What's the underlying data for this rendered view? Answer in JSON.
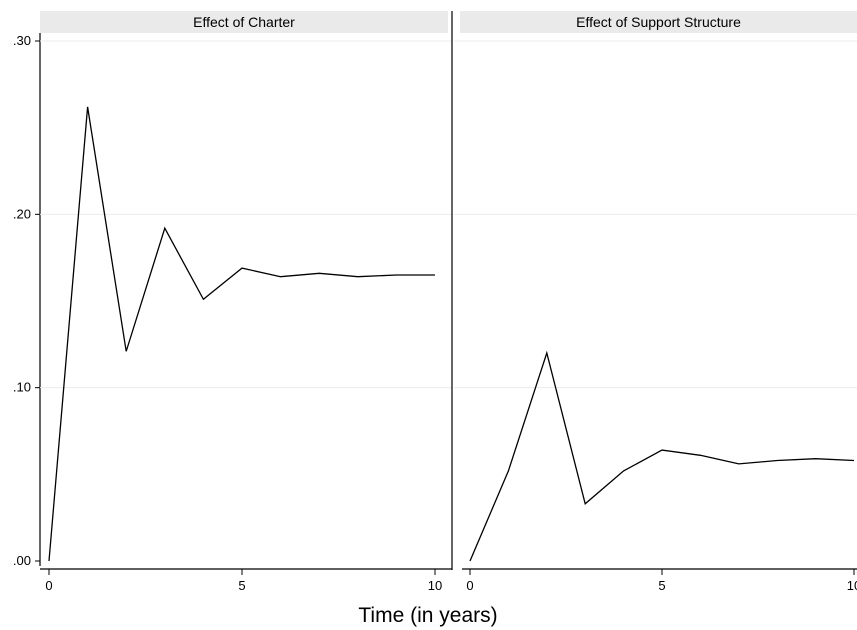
{
  "chart_data": {
    "type": "line",
    "xlabel": "Time (in years)",
    "ylim": [
      0,
      0.3
    ],
    "yticks": [
      0,
      0.1,
      0.2,
      0.3
    ],
    "ytick_labels": [
      ".00",
      ".10",
      ".20",
      ".30"
    ],
    "xlim": [
      0,
      10
    ],
    "xticks": [
      0,
      5,
      10
    ],
    "xtick_labels": [
      "0",
      "5",
      "10"
    ],
    "grid": true,
    "panels": [
      {
        "title": "Effect of Charter",
        "x": [
          0,
          1,
          2,
          3,
          4,
          5,
          6,
          7,
          8,
          9,
          10
        ],
        "y": [
          0.0,
          0.262,
          0.121,
          0.192,
          0.151,
          0.169,
          0.164,
          0.166,
          0.164,
          0.165,
          0.165
        ]
      },
      {
        "title": "Effect of Support Structure",
        "x": [
          0,
          1,
          2,
          3,
          4,
          5,
          6,
          7,
          8,
          9,
          10
        ],
        "y": [
          0.0,
          0.052,
          0.12,
          0.033,
          0.052,
          0.064,
          0.061,
          0.056,
          0.058,
          0.059,
          0.058
        ]
      }
    ]
  }
}
